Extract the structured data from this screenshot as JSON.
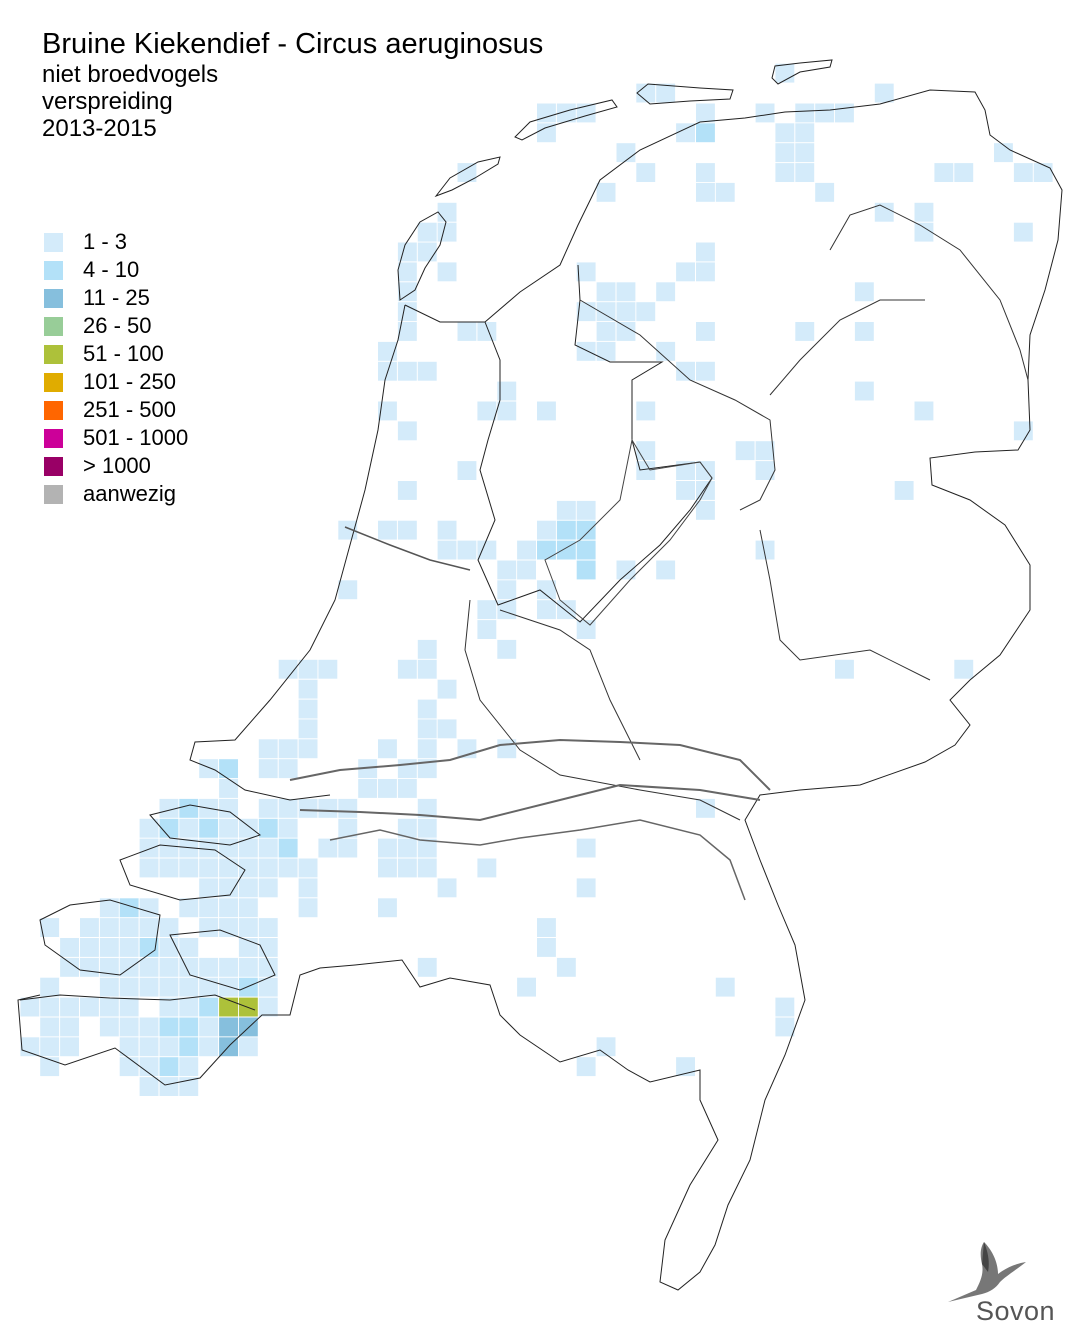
{
  "header": {
    "title": "Bruine Kiekendief - Circus aeruginosus",
    "subtitle_1": "niet broedvogels",
    "subtitle_2": "verspreiding",
    "subtitle_3": "2013-2015"
  },
  "legend": [
    {
      "label": "1 - 3",
      "color": "#d4ebfa"
    },
    {
      "label": "4 - 10",
      "color": "#b3e1f8"
    },
    {
      "label": "11 - 25",
      "color": "#86bfdd"
    },
    {
      "label": "26 - 50",
      "color": "#98cd98"
    },
    {
      "label": "51 - 100",
      "color": "#adc13a"
    },
    {
      "label": "101 - 250",
      "color": "#e0ac00"
    },
    {
      "label": "251 - 500",
      "color": "#ff6600"
    },
    {
      "label": "501 - 1000",
      "color": "#cc0099"
    },
    {
      "label": "> 1000",
      "color": "#990066"
    },
    {
      "label": "aanwezig",
      "color": "#b3b3b3"
    }
  ],
  "logo": {
    "text": "Sovon",
    "icon": "swallow-icon"
  }
}
